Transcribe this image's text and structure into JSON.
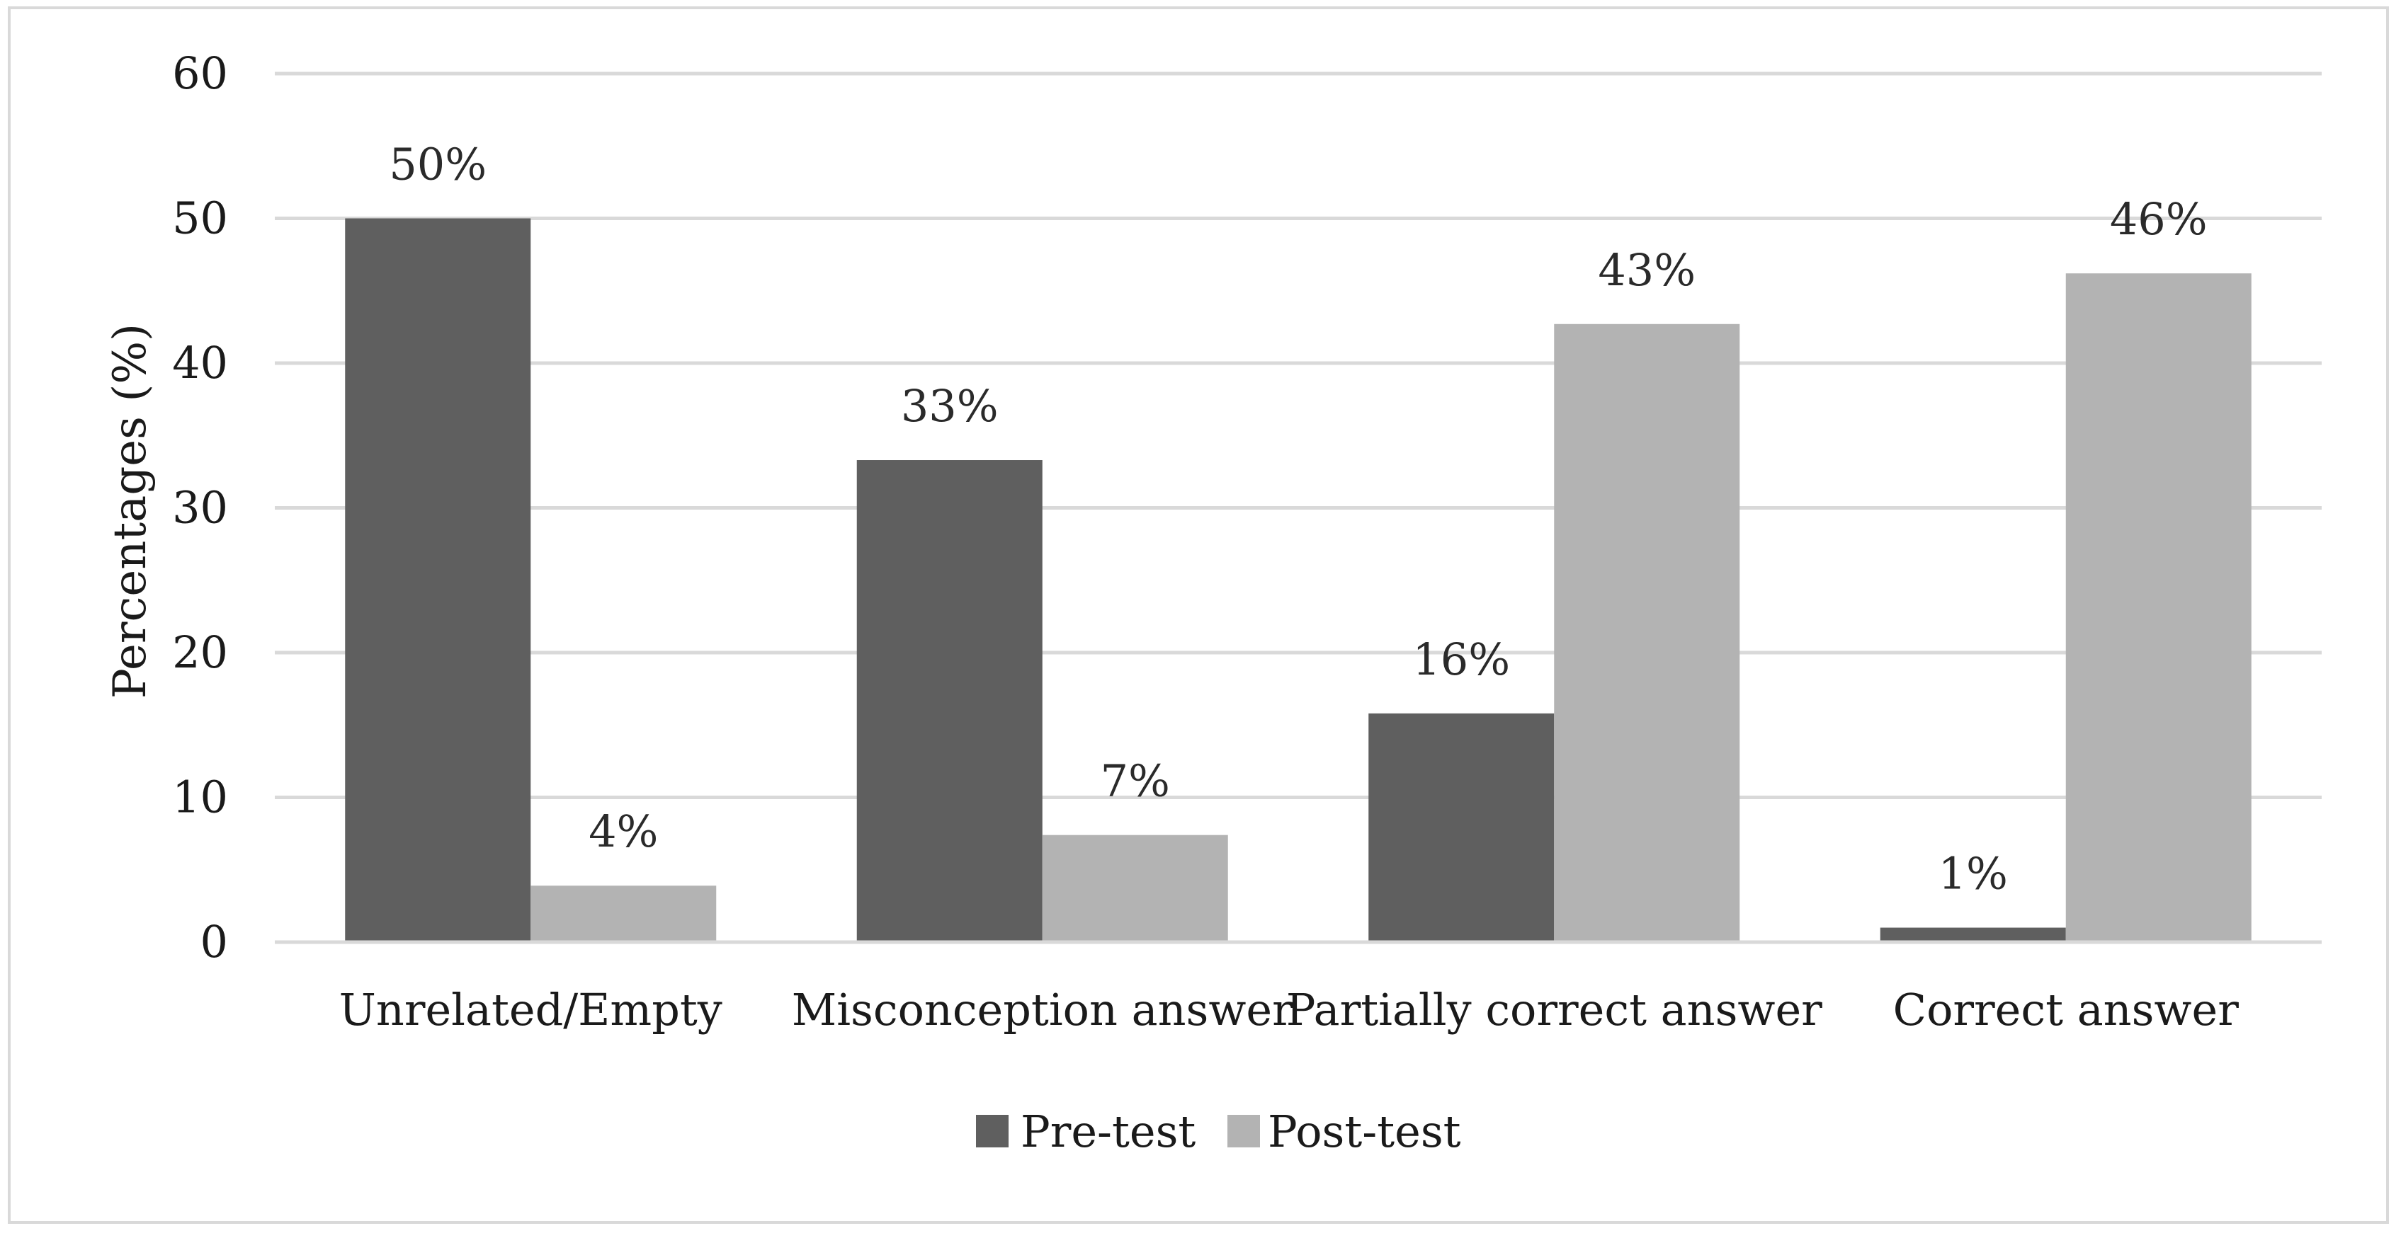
{
  "chart_data": {
    "type": "bar",
    "title": "",
    "xlabel": "",
    "ylabel": "Percentages (%)",
    "ylim": [
      0,
      60
    ],
    "yticks": [
      0,
      10,
      20,
      30,
      40,
      50,
      60
    ],
    "grid": true,
    "legend_position": "bottom",
    "categories": [
      "Unrelated/Empty",
      "Misconception answer",
      "Partially correct answer",
      "Correct answer"
    ],
    "series": [
      {
        "name": "Pre-test",
        "color": "#5f5f5f",
        "values": [
          50,
          33.3,
          15.8,
          1
        ],
        "labels": [
          "50%",
          "33%",
          "16%",
          "1%"
        ]
      },
      {
        "name": "Post-test",
        "color": "#b3b3b3",
        "values": [
          3.9,
          7.4,
          42.7,
          46.2
        ],
        "labels": [
          "4%",
          "7%",
          "43%",
          "46%"
        ]
      }
    ]
  }
}
